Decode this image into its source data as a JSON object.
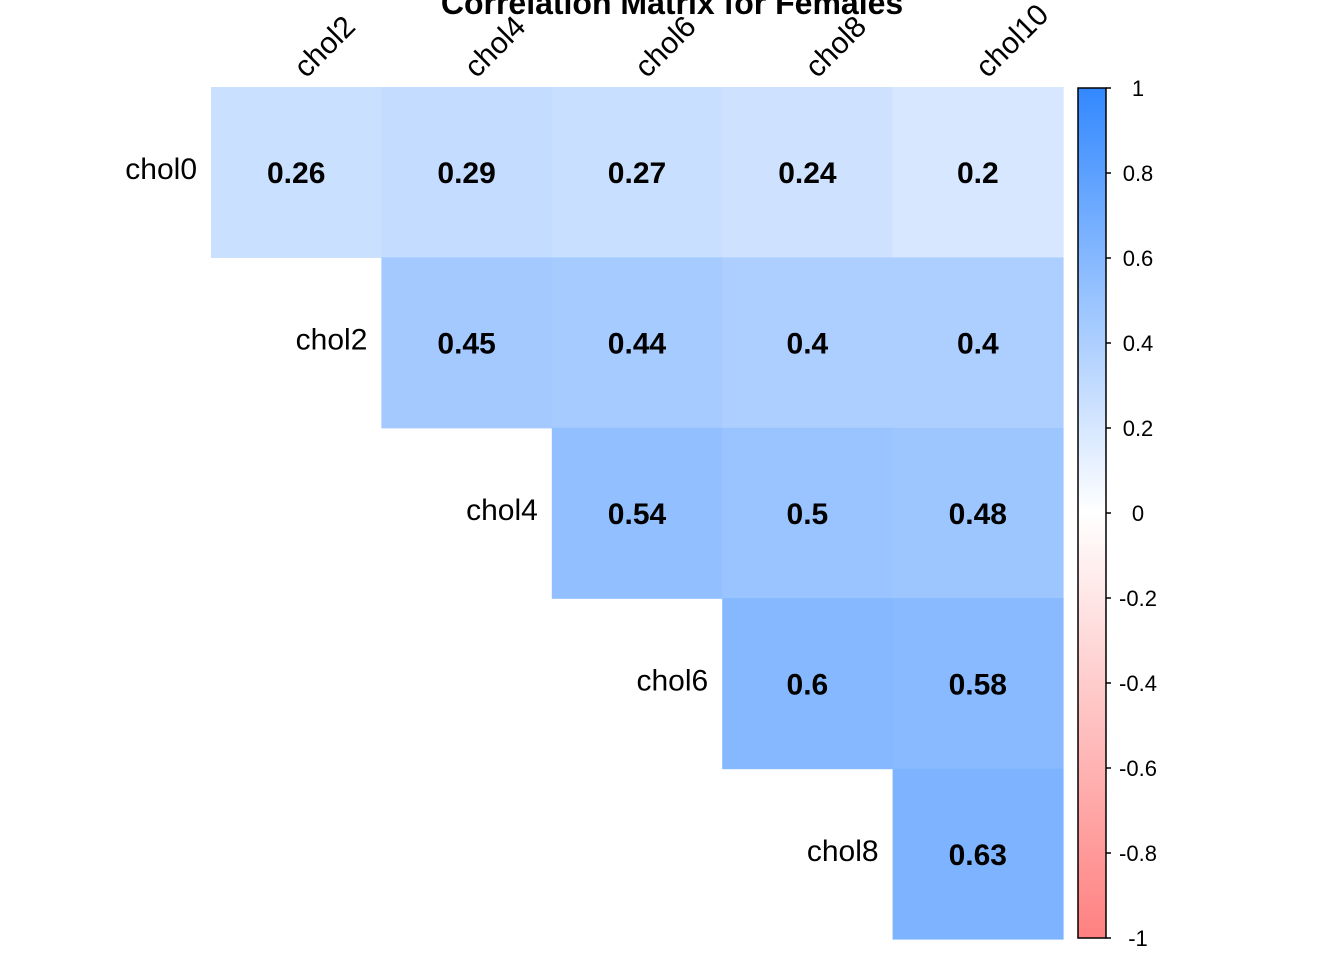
{
  "chart_data": {
    "type": "heatmap",
    "title": "Correlation Matrix for Females",
    "columns": [
      "chol2",
      "chol4",
      "chol6",
      "chol8",
      "chol10"
    ],
    "rows": [
      "chol0",
      "chol2",
      "chol4",
      "chol6",
      "chol8"
    ],
    "cells": [
      {
        "row": "chol0",
        "col": "chol2",
        "value": 0.26
      },
      {
        "row": "chol0",
        "col": "chol4",
        "value": 0.29
      },
      {
        "row": "chol0",
        "col": "chol6",
        "value": 0.27
      },
      {
        "row": "chol0",
        "col": "chol8",
        "value": 0.24
      },
      {
        "row": "chol0",
        "col": "chol10",
        "value": 0.2
      },
      {
        "row": "chol2",
        "col": "chol4",
        "value": 0.45
      },
      {
        "row": "chol2",
        "col": "chol6",
        "value": 0.44
      },
      {
        "row": "chol2",
        "col": "chol8",
        "value": 0.4
      },
      {
        "row": "chol2",
        "col": "chol10",
        "value": 0.4
      },
      {
        "row": "chol4",
        "col": "chol6",
        "value": 0.54
      },
      {
        "row": "chol4",
        "col": "chol8",
        "value": 0.5
      },
      {
        "row": "chol4",
        "col": "chol10",
        "value": 0.48
      },
      {
        "row": "chol6",
        "col": "chol8",
        "value": 0.6
      },
      {
        "row": "chol6",
        "col": "chol10",
        "value": 0.58
      },
      {
        "row": "chol8",
        "col": "chol10",
        "value": 0.63
      }
    ],
    "color_range": [
      -1,
      1
    ],
    "colors": {
      "negative": "#ff8080",
      "mid": "#ffffff",
      "positive": "#3388ff"
    },
    "legend": {
      "placement": "right",
      "ticks": [
        1,
        0.8,
        0.6,
        0.4,
        0.2,
        0,
        -0.2,
        -0.4,
        -0.6,
        -0.8,
        -1
      ],
      "tick_labels": [
        "1",
        "0.8",
        "0.6",
        "0.4",
        "0.2",
        "0",
        "-0.2",
        "-0.4",
        "-0.6",
        "-0.8",
        "-1"
      ]
    },
    "grid": false
  }
}
